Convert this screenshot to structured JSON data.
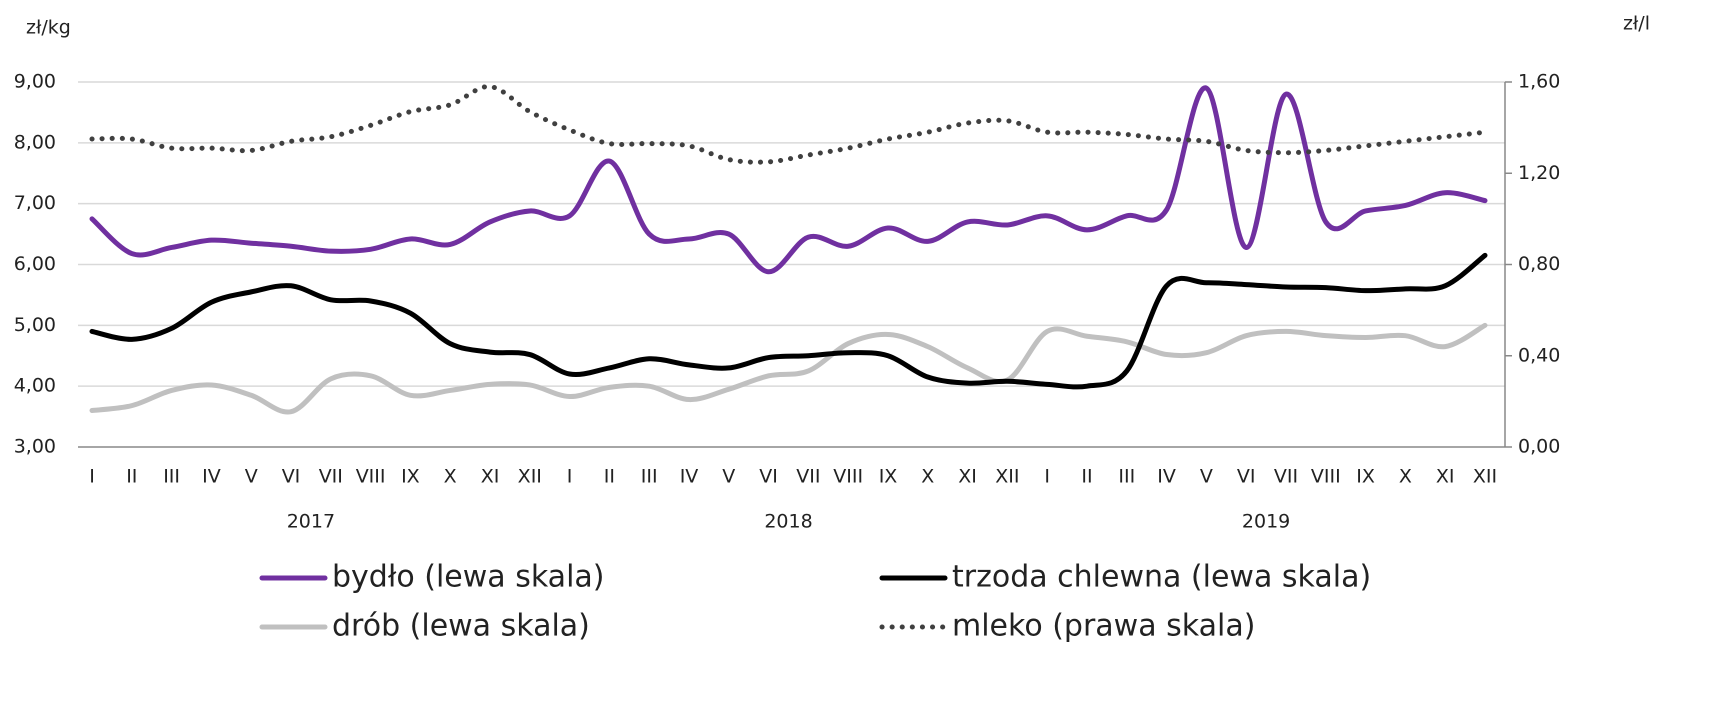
{
  "chart_data": {
    "type": "line",
    "y_label": "zł/kg",
    "y2_label": "zł/l",
    "categories": [
      "I",
      "II",
      "III",
      "IV",
      "V",
      "VI",
      "VII",
      "VIII",
      "IX",
      "X",
      "XI",
      "XII",
      "I",
      "II",
      "III",
      "IV",
      "V",
      "VI",
      "VII",
      "VIII",
      "IX",
      "X",
      "XI",
      "XII",
      "I",
      "II",
      "III",
      "IV",
      "V",
      "VI",
      "VII",
      "VIII",
      "IX",
      "X",
      "XI",
      "XII"
    ],
    "years": [
      "2017",
      "2018",
      "2019"
    ],
    "ylim": [
      3,
      9
    ],
    "yticks": [
      {
        "value": 3,
        "label": "3,00"
      },
      {
        "value": 4,
        "label": "4,00"
      },
      {
        "value": 5,
        "label": "5,00"
      },
      {
        "value": 6,
        "label": "6,00"
      },
      {
        "value": 7,
        "label": "7,00"
      },
      {
        "value": 8,
        "label": "8,00"
      },
      {
        "value": 9,
        "label": "9,00"
      }
    ],
    "y2lim": [
      0,
      1.6
    ],
    "y2ticks": [
      {
        "value": 0,
        "label": "0,00"
      },
      {
        "value": 0.4,
        "label": "0,40"
      },
      {
        "value": 0.8,
        "label": "0,80"
      },
      {
        "value": 1.2,
        "label": "1,20"
      },
      {
        "value": 1.6,
        "label": "1,60"
      }
    ],
    "grid": true,
    "series": [
      {
        "name": "bydło (lewa skala)",
        "color": "#7030a0",
        "style": "solid",
        "values": [
          6.75,
          6.18,
          6.28,
          6.4,
          6.35,
          6.3,
          6.22,
          6.25,
          6.42,
          6.33,
          6.7,
          6.88,
          6.8,
          7.7,
          6.5,
          6.42,
          6.5,
          5.88,
          6.45,
          6.3,
          6.6,
          6.38,
          6.7,
          6.65,
          6.8,
          6.57,
          6.8,
          6.9,
          8.9,
          6.28,
          8.8,
          6.7,
          6.88,
          6.97,
          7.18,
          7.05
        ]
      },
      {
        "name": "trzoda chlewna (lewa skala)",
        "color": "#000000",
        "style": "solid",
        "values": [
          4.9,
          4.77,
          4.95,
          5.38,
          5.55,
          5.65,
          5.42,
          5.4,
          5.2,
          4.7,
          4.56,
          4.52,
          4.2,
          4.3,
          4.45,
          4.35,
          4.3,
          4.47,
          4.5,
          4.55,
          4.5,
          4.15,
          4.05,
          4.08,
          4.03,
          4.0,
          4.25,
          5.65,
          5.7,
          5.67,
          5.63,
          5.62,
          5.57,
          5.6,
          5.65,
          6.15
        ]
      },
      {
        "name": "drób (lewa skala)",
        "color": "#c0c0c0",
        "style": "solid",
        "values": [
          3.6,
          3.68,
          3.93,
          4.02,
          3.85,
          3.58,
          4.12,
          4.17,
          3.85,
          3.93,
          4.03,
          4.02,
          3.83,
          3.98,
          4.0,
          3.78,
          3.95,
          4.17,
          4.25,
          4.7,
          4.85,
          4.65,
          4.3,
          4.1,
          4.9,
          4.82,
          4.73,
          4.52,
          4.55,
          4.83,
          4.9,
          4.83,
          4.8,
          4.83,
          4.65,
          5.0
        ]
      },
      {
        "name": "mleko (prawa skala)",
        "color": "#404040",
        "style": "dotted",
        "axis": "y2",
        "values": [
          1.35,
          1.35,
          1.31,
          1.31,
          1.3,
          1.34,
          1.36,
          1.41,
          1.47,
          1.5,
          1.58,
          1.47,
          1.39,
          1.33,
          1.33,
          1.32,
          1.26,
          1.25,
          1.28,
          1.31,
          1.35,
          1.38,
          1.42,
          1.43,
          1.38,
          1.38,
          1.37,
          1.35,
          1.34,
          1.3,
          1.29,
          1.3,
          1.32,
          1.34,
          1.36,
          1.38
        ]
      }
    ]
  }
}
